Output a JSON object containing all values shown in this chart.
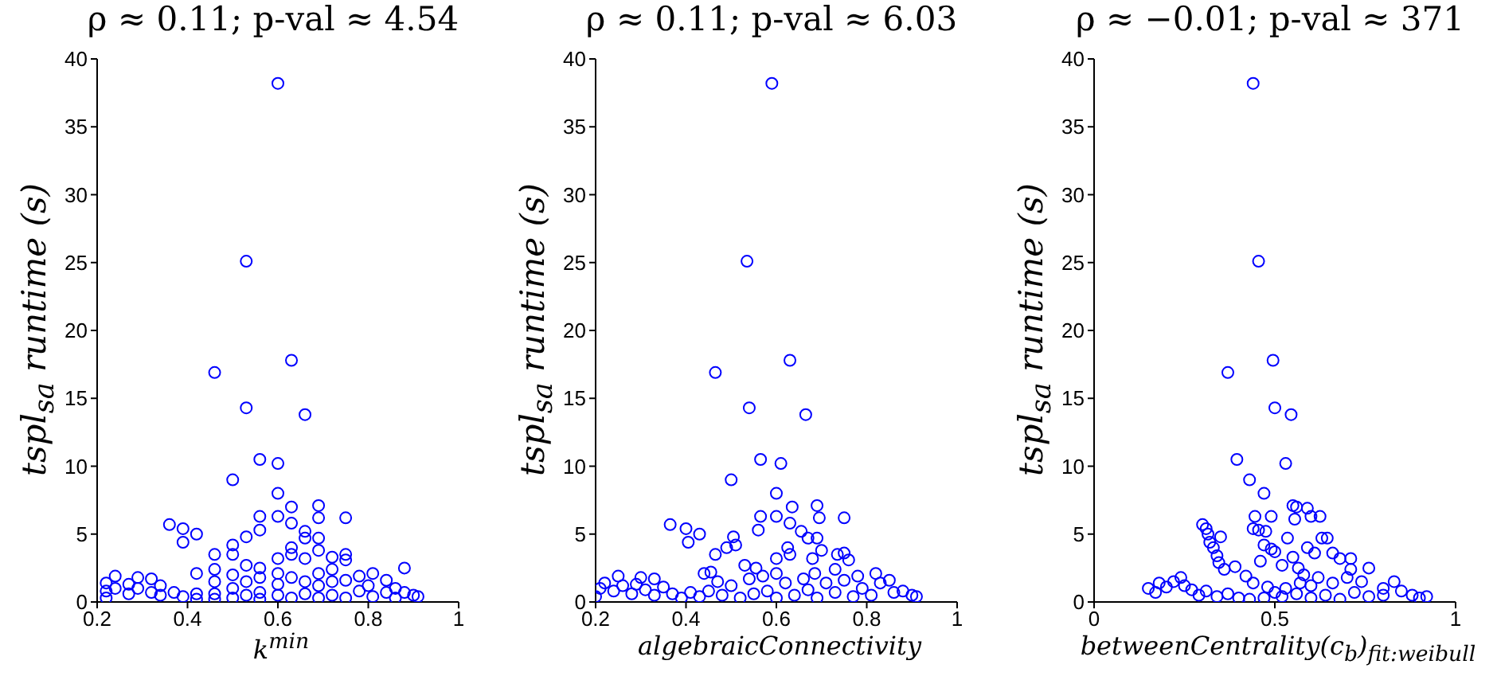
{
  "chart_data": [
    {
      "type": "scatter",
      "title": "ρ ≈ 0.11; p-val ≈ 4.54",
      "xlabel": "k$^{min}$",
      "ylabel": "tspl$_{sa}$ runtime (s)",
      "marker": "circle",
      "xlim": [
        0.2,
        1
      ],
      "xticks": [
        0.2,
        0.4,
        0.6,
        0.8,
        1
      ],
      "ylim": [
        0,
        40
      ],
      "yticks": [
        0,
        5,
        10,
        15,
        20,
        25,
        30,
        35,
        40
      ],
      "series": [
        {
          "color": "#0000ff",
          "x": [
            0.6,
            0.53,
            0.63,
            0.46,
            0.53,
            0.66,
            0.56,
            0.6,
            0.5,
            0.6,
            0.56,
            0.6,
            0.63,
            0.69,
            0.69,
            0.75,
            0.36,
            0.39,
            0.39,
            0.42,
            0.53,
            0.56,
            0.63,
            0.66,
            0.66,
            0.69,
            0.5,
            0.5,
            0.46,
            0.63,
            0.63,
            0.66,
            0.69,
            0.72,
            0.75,
            0.75,
            0.6,
            0.42,
            0.46,
            0.53,
            0.56,
            0.6,
            0.69,
            0.72,
            0.88,
            0.81,
            0.78,
            0.24,
            0.29,
            0.32,
            0.22,
            0.22,
            0.22,
            0.24,
            0.27,
            0.27,
            0.29,
            0.32,
            0.34,
            0.34,
            0.37,
            0.39,
            0.42,
            0.42,
            0.46,
            0.46,
            0.46,
            0.5,
            0.5,
            0.5,
            0.53,
            0.53,
            0.56,
            0.56,
            0.56,
            0.6,
            0.6,
            0.63,
            0.63,
            0.66,
            0.66,
            0.69,
            0.69,
            0.72,
            0.72,
            0.75,
            0.75,
            0.78,
            0.81,
            0.84,
            0.84,
            0.86,
            0.86,
            0.88,
            0.9,
            0.91,
            0.8
          ],
          "values": [
            38.2,
            25.1,
            17.8,
            16.9,
            14.3,
            13.8,
            10.5,
            10.2,
            9.0,
            8.0,
            6.3,
            6.3,
            7.0,
            7.1,
            6.2,
            6.2,
            5.7,
            5.4,
            4.4,
            5.0,
            4.8,
            5.3,
            5.8,
            5.2,
            4.7,
            4.7,
            4.2,
            3.5,
            3.5,
            4.0,
            3.5,
            3.2,
            3.8,
            3.3,
            3.5,
            3.1,
            3.2,
            2.1,
            2.4,
            2.7,
            2.5,
            2.1,
            2.1,
            2.4,
            2.5,
            2.1,
            1.9,
            1.9,
            1.8,
            1.7,
            1.4,
            0.8,
            0.3,
            1.0,
            1.3,
            0.6,
            1.0,
            0.7,
            1.2,
            0.5,
            0.7,
            0.4,
            0.6,
            0.2,
            1.5,
            0.6,
            0.2,
            2.0,
            1.0,
            0.3,
            1.5,
            0.5,
            1.8,
            0.7,
            0.2,
            1.3,
            0.5,
            1.8,
            0.3,
            1.5,
            0.6,
            1.2,
            0.3,
            1.5,
            0.5,
            1.6,
            0.3,
            0.8,
            0.4,
            1.6,
            0.7,
            1.0,
            0.3,
            0.7,
            0.5,
            0.4,
            1.2
          ]
        }
      ]
    },
    {
      "type": "scatter",
      "title": "ρ ≈ 0.11; p-val ≈ 6.03",
      "xlabel": "algebraicConnectivity",
      "ylabel": "tspl$_{sa}$ runtime (s)",
      "marker": "circle",
      "xlim": [
        0.2,
        1
      ],
      "xticks": [
        0.2,
        0.4,
        0.6,
        0.8,
        1
      ],
      "ylim": [
        0,
        40
      ],
      "yticks": [
        0,
        5,
        10,
        15,
        20,
        25,
        30,
        35,
        40
      ],
      "series": [
        {
          "color": "#0000ff",
          "x": [
            0.59,
            0.535,
            0.63,
            0.465,
            0.54,
            0.665,
            0.565,
            0.61,
            0.5,
            0.6,
            0.565,
            0.6,
            0.635,
            0.69,
            0.695,
            0.75,
            0.365,
            0.4,
            0.405,
            0.43,
            0.505,
            0.56,
            0.63,
            0.655,
            0.67,
            0.69,
            0.51,
            0.49,
            0.465,
            0.625,
            0.63,
            0.68,
            0.7,
            0.735,
            0.75,
            0.76,
            0.6,
            0.44,
            0.455,
            0.53,
            0.555,
            0.6,
            0.685,
            0.73,
            0.82,
            0.78,
            0.25,
            0.3,
            0.33,
            0.21,
            0.2,
            0.22,
            0.24,
            0.26,
            0.28,
            0.29,
            0.31,
            0.33,
            0.35,
            0.37,
            0.39,
            0.41,
            0.43,
            0.45,
            0.47,
            0.48,
            0.5,
            0.52,
            0.54,
            0.55,
            0.57,
            0.58,
            0.6,
            0.62,
            0.64,
            0.66,
            0.67,
            0.69,
            0.71,
            0.73,
            0.75,
            0.77,
            0.79,
            0.81,
            0.83,
            0.85,
            0.86,
            0.88,
            0.9,
            0.91
          ],
          "values": [
            38.2,
            25.1,
            17.8,
            16.9,
            14.3,
            13.8,
            10.5,
            10.2,
            9.0,
            8.0,
            6.3,
            6.3,
            7.0,
            7.1,
            6.2,
            6.2,
            5.7,
            5.4,
            4.4,
            5.0,
            4.8,
            5.3,
            5.8,
            5.2,
            4.7,
            4.7,
            4.2,
            4.0,
            3.5,
            4.0,
            3.5,
            3.2,
            3.8,
            3.5,
            3.6,
            3.1,
            3.2,
            2.1,
            2.2,
            2.7,
            2.5,
            2.1,
            2.1,
            2.4,
            2.1,
            1.9,
            1.9,
            1.8,
            1.7,
            1.0,
            0.4,
            1.4,
            0.8,
            1.2,
            0.6,
            1.3,
            0.9,
            0.5,
            1.1,
            0.6,
            0.3,
            0.7,
            0.4,
            0.8,
            1.5,
            0.5,
            1.2,
            0.3,
            1.7,
            0.6,
            1.9,
            0.8,
            0.3,
            1.4,
            0.5,
            1.7,
            0.9,
            0.3,
            1.4,
            0.7,
            1.6,
            0.4,
            1.0,
            0.5,
            1.4,
            1.6,
            0.7,
            0.8,
            0.5,
            0.4
          ]
        }
      ]
    },
    {
      "type": "scatter",
      "title": "ρ ≈ −0.01; p-val ≈ 371",
      "xlabel": "betweenCentrality(c$_{b}$)$_{fit:weibull}$",
      "ylabel": "tspl$_{sa}$ runtime (s)",
      "marker": "circle",
      "xlim": [
        0,
        1
      ],
      "xticks": [
        0,
        0.5,
        1
      ],
      "ylim": [
        0,
        40
      ],
      "yticks": [
        0,
        5,
        10,
        15,
        20,
        25,
        30,
        35,
        40
      ],
      "series": [
        {
          "color": "#0000ff",
          "x": [
            0.44,
            0.455,
            0.495,
            0.37,
            0.5,
            0.545,
            0.395,
            0.53,
            0.43,
            0.47,
            0.445,
            0.49,
            0.55,
            0.56,
            0.59,
            0.555,
            0.6,
            0.625,
            0.3,
            0.31,
            0.315,
            0.32,
            0.35,
            0.44,
            0.455,
            0.475,
            0.535,
            0.63,
            0.645,
            0.33,
            0.34,
            0.345,
            0.36,
            0.39,
            0.47,
            0.49,
            0.5,
            0.46,
            0.55,
            0.59,
            0.61,
            0.66,
            0.68,
            0.71,
            0.71,
            0.76,
            0.52,
            0.565,
            0.58,
            0.62,
            0.42,
            0.44,
            0.48,
            0.5,
            0.53,
            0.57,
            0.6,
            0.66,
            0.7,
            0.74,
            0.8,
            0.83,
            0.15,
            0.17,
            0.18,
            0.2,
            0.22,
            0.24,
            0.25,
            0.27,
            0.29,
            0.31,
            0.34,
            0.37,
            0.4,
            0.43,
            0.47,
            0.52,
            0.56,
            0.6,
            0.64,
            0.68,
            0.72,
            0.76,
            0.8,
            0.85,
            0.88,
            0.9,
            0.92
          ],
          "values": [
            38.2,
            25.1,
            17.8,
            16.9,
            14.3,
            13.8,
            10.5,
            10.2,
            9.0,
            8.0,
            6.3,
            6.3,
            7.1,
            7.0,
            6.9,
            6.1,
            6.3,
            6.3,
            5.7,
            5.4,
            5.0,
            4.4,
            4.8,
            5.4,
            5.3,
            5.2,
            4.7,
            4.7,
            4.7,
            4.0,
            3.4,
            2.9,
            2.4,
            2.6,
            4.2,
            3.9,
            3.7,
            3.0,
            3.3,
            4.0,
            3.6,
            3.6,
            3.2,
            3.2,
            2.4,
            2.5,
            2.7,
            2.5,
            2.0,
            1.8,
            1.9,
            1.4,
            1.1,
            0.7,
            1.0,
            1.4,
            1.2,
            1.4,
            1.8,
            1.5,
            1.0,
            1.5,
            1.0,
            0.7,
            1.4,
            1.1,
            1.5,
            1.8,
            1.2,
            0.9,
            0.5,
            0.8,
            0.4,
            0.6,
            0.3,
            0.2,
            0.3,
            0.4,
            0.6,
            0.3,
            0.5,
            0.2,
            0.7,
            0.4,
            0.5,
            0.8,
            0.5,
            0.3,
            0.4
          ]
        }
      ]
    }
  ]
}
